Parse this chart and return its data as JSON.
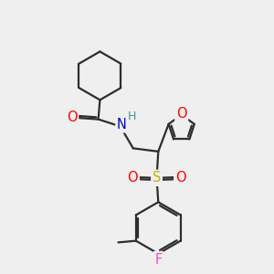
{
  "bg_color": "#efefef",
  "bond_color": "#2d2d2d",
  "bond_width": 1.6,
  "atom_colors": {
    "O": "#ff0000",
    "N": "#0000cd",
    "S": "#b8b800",
    "F": "#ff44cc",
    "H": "#4a9090",
    "C": "#2d2d2d"
  },
  "font_size_atom": 10.5,
  "font_size_H": 9.0
}
